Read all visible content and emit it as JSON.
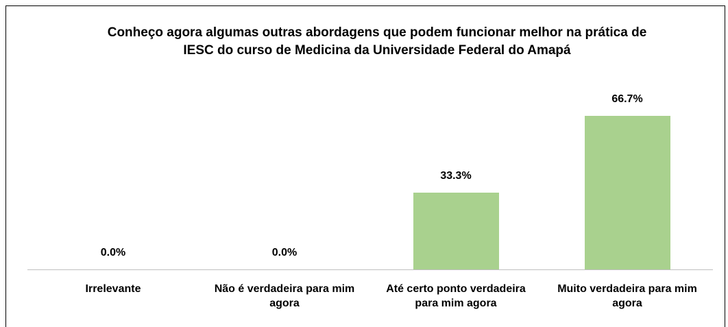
{
  "chart_data": {
    "type": "bar",
    "title": "Conheço agora algumas outras abordagens que podem funcionar melhor na prática de IESC do curso de Medicina da Universidade Federal do Amapá",
    "categories": [
      "Irrelevante",
      "Não é verdadeira para mim agora",
      "Até certo ponto verdadeira para mim agora",
      "Muito verdadeira para mim agora"
    ],
    "values": [
      0,
      0,
      33.3,
      66.7
    ],
    "value_labels": [
      "0.0%",
      "0.0%",
      "33.3%",
      "66.7%"
    ],
    "color": "#a9d18e"
  }
}
